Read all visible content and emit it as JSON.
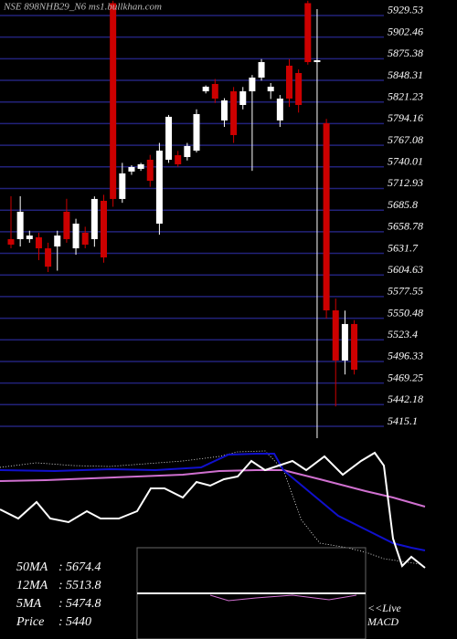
{
  "chart_data": {
    "type": "candlestick",
    "title": "NSE 898NHB29_N6  ms1.bullkhan.com",
    "open": [
      5649.5,
      5649.5,
      5649.5,
      5651.8,
      5638.0,
      5640.3,
      5683.8,
      5638.0,
      5657.5,
      5649.5,
      5697.5,
      5945,
      5699.8,
      5734.1,
      5737.5,
      5748.9,
      5668.9,
      5748.9,
      5754.6,
      5752.3,
      5760.3,
      5834.6,
      5843.8,
      5798.1,
      5834.6,
      5817.5,
      5834.6,
      5851.8,
      5834.6,
      5798.1,
      5866.7,
      5857.5,
      5945,
      5871.2,
      5794.6,
      5560.3,
      5497.5,
      5543.2
    ],
    "high": [
      5703.2,
      5703.2,
      5660,
      5657.5,
      5645,
      5660,
      5700,
      5675,
      5665,
      5703,
      5705,
      5948,
      5745,
      5742,
      5745,
      5755,
      5770,
      5805,
      5760,
      5770,
      5812,
      5842,
      5850,
      5826,
      5840,
      5840,
      5855,
      5875,
      5845,
      5830,
      5875,
      5862,
      5948,
      5937.5,
      5800,
      5575,
      5560,
      5548
    ],
    "low": [
      5638.0,
      5640.3,
      5645,
      5623.2,
      5608.3,
      5610,
      5645,
      5630,
      5638,
      5640,
      5620,
      5690,
      5695,
      5730,
      5735,
      5715,
      5655,
      5745,
      5740,
      5748,
      5758,
      5832,
      5820,
      5790,
      5770,
      5812,
      5735,
      5848,
      5825,
      5790,
      5815,
      5808,
      5868,
      5400.3,
      5550,
      5440,
      5480,
      5480
    ],
    "close": [
      5642.6,
      5683.8,
      5654.0,
      5638.0,
      5615,
      5654.0,
      5649.5,
      5668.9,
      5642.6,
      5699.8,
      5626.6,
      5699.8,
      5731.8,
      5739.8,
      5743.2,
      5722.6,
      5760.3,
      5802.7,
      5743.2,
      5766.1,
      5806.1,
      5840.4,
      5825.5,
      5823.2,
      5779.8,
      5834.6,
      5851.8,
      5871.2,
      5840.4,
      5825.5,
      5825.5,
      5817.5,
      5871.2,
      5873.5,
      5560.3,
      5497.5,
      5543.2,
      5486.0
    ],
    "up_color": "#ffffff",
    "down_color": "#cc0000",
    "grid_color": "#22227a",
    "ylim": [
      5400.24,
      5948.96
    ],
    "yticks": [
      5929.53,
      5902.46,
      5875.38,
      5848.31,
      5821.23,
      5794.16,
      5767.08,
      5740.01,
      5712.93,
      5685.8,
      5658.78,
      5631.7,
      5604.63,
      5577.55,
      5550.48,
      5523.4,
      5496.33,
      5469.25,
      5442.18,
      5415.1
    ],
    "grid": true,
    "indicators": [
      {
        "label": "50MA",
        "value": 5674.4
      },
      {
        "label": "12MA",
        "value": 5513.8
      },
      {
        "label": "5MA",
        "value": 5474.8
      },
      {
        "label": "Price",
        "value": 5440
      }
    ],
    "live_label": "<<Live",
    "macd_label": "MACD"
  }
}
